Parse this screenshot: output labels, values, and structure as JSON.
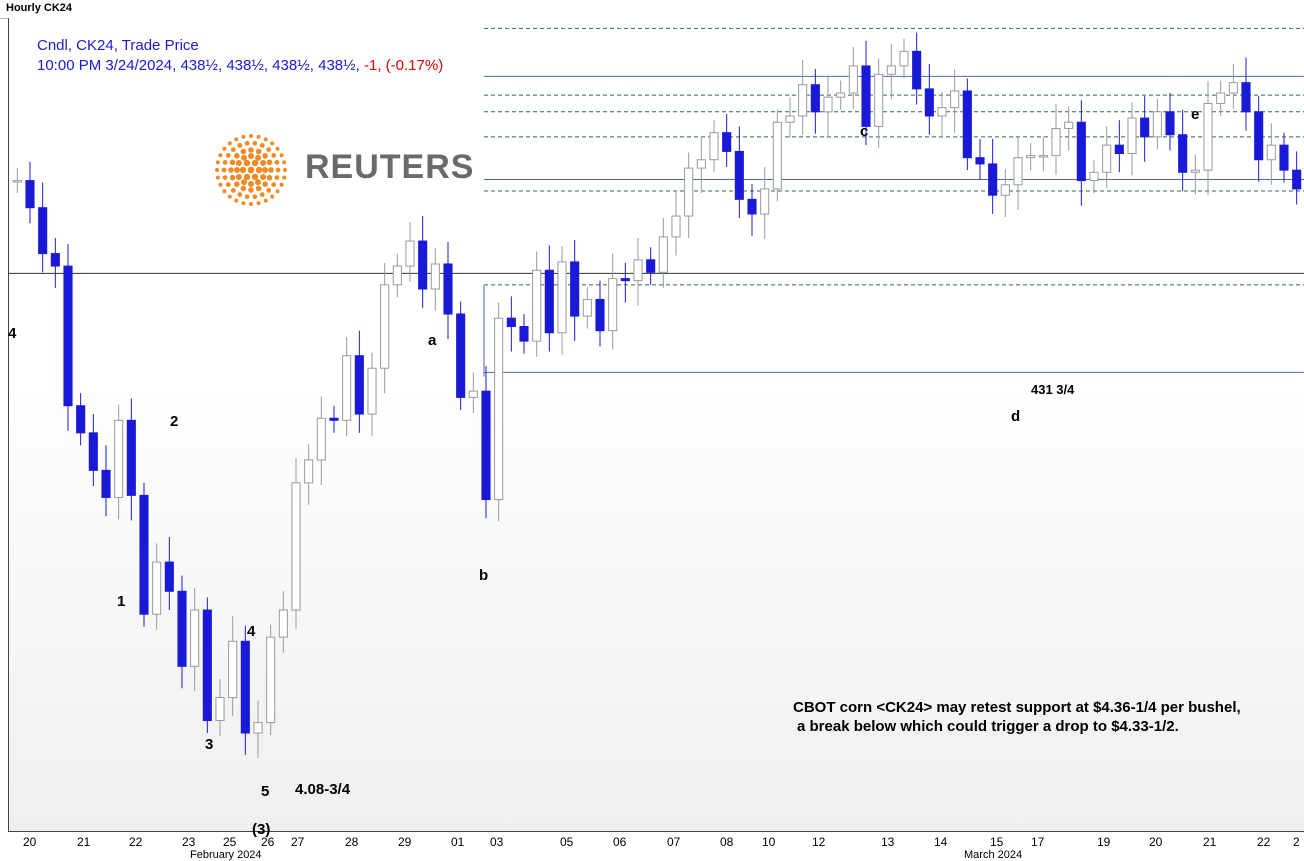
{
  "window": {
    "title": "Hourly CK24"
  },
  "info": {
    "line1": "Cndl, CK24, Trade Price",
    "line2_prefix": "10:00 PM 3/24/2024, ",
    "values": [
      "438½",
      "438½",
      "438½",
      "438½"
    ],
    "change": "-1, (-0.17%)",
    "change_color": "#e00000",
    "text_color": "#1a1ad6"
  },
  "logo": {
    "text": "REUTERS",
    "color": "#f08a24",
    "icon": "reuters-dot-globe-icon"
  },
  "note": {
    "line1": "CBOT corn <CK24> may retest support at $4.36-1/4 per bushel,",
    "line2": "a break below which could trigger a drop to $4.33-1/2."
  },
  "wave_labels": {
    "four_top": "4",
    "one": "1",
    "two": "2",
    "three": "3",
    "four": "4",
    "five": "5",
    "paren_three": "(3)",
    "low_label": "4.08-3/4",
    "a": "a",
    "b": "b",
    "c": "c",
    "d": "d",
    "e": "e"
  },
  "level_label": "431 3/4",
  "chart_data": {
    "type": "candlestick",
    "title": "Hourly CK24",
    "series_name": "Cndl, CK24, Trade Price",
    "up_color": "#9a9a9a",
    "down_color": "#1a1ad6",
    "x_ticks": [
      "20",
      "21",
      "22",
      "23",
      "25",
      "26",
      "27",
      "28",
      "29",
      "01",
      "03",
      "05",
      "06",
      "07",
      "08",
      "10",
      "12",
      "13",
      "14",
      "15",
      "17",
      "19",
      "20",
      "21",
      "22",
      "2"
    ],
    "months": [
      "February 2024",
      "March 2024"
    ],
    "close_series": [
      436.2,
      434.9,
      432.7,
      432.1,
      425.4,
      424.1,
      422.3,
      421,
      424.7,
      421.1,
      415.4,
      417.9,
      416.5,
      412.9,
      415.6,
      410.3,
      411.4,
      414.1,
      409.7,
      410.2,
      414.3,
      415.6,
      421.7,
      422.8,
      424.8,
      424.7,
      427.8,
      425,
      427.2,
      431.2,
      432.1,
      433.3,
      431,
      432.2,
      429.8,
      425.8,
      426.1,
      420.9,
      429.6,
      429.2,
      428.5,
      431.9,
      428.9,
      432.3,
      429.7,
      430.5,
      429,
      431.5,
      431.4,
      432.4,
      431.8,
      433.5,
      434.5,
      436.8,
      437.2,
      438.5,
      437.6,
      435.3,
      434.6,
      435.8,
      439,
      439.3,
      440.8,
      439.5,
      440.2,
      440.4,
      441.7,
      438.8,
      441.3,
      441.7,
      442.4,
      440.6,
      439.3,
      439.7,
      440.5,
      437.3,
      437,
      435.5,
      436,
      437.3,
      437.4,
      437.4,
      438.7,
      439,
      436.2,
      436.6,
      437.9,
      437.5,
      439.2,
      438.3,
      439.5,
      438.4,
      436.6,
      436.7,
      439.9,
      440.4,
      440.9,
      439.5,
      437.2,
      437.9,
      436.7,
      435.8
    ],
    "resistance_lines": [
      441.2,
      436.25,
      431.75,
      427
    ],
    "dashed_levels": [
      443.5,
      440.3,
      439.5,
      438.3,
      435.7,
      431.2
    ],
    "ylim": [
      405,
      444
    ],
    "wave_points": {
      "a": 432.2,
      "b": 426.8,
      "c": 441.2,
      "d": 431.75,
      "e": 442.4,
      "low": 408.75
    }
  }
}
